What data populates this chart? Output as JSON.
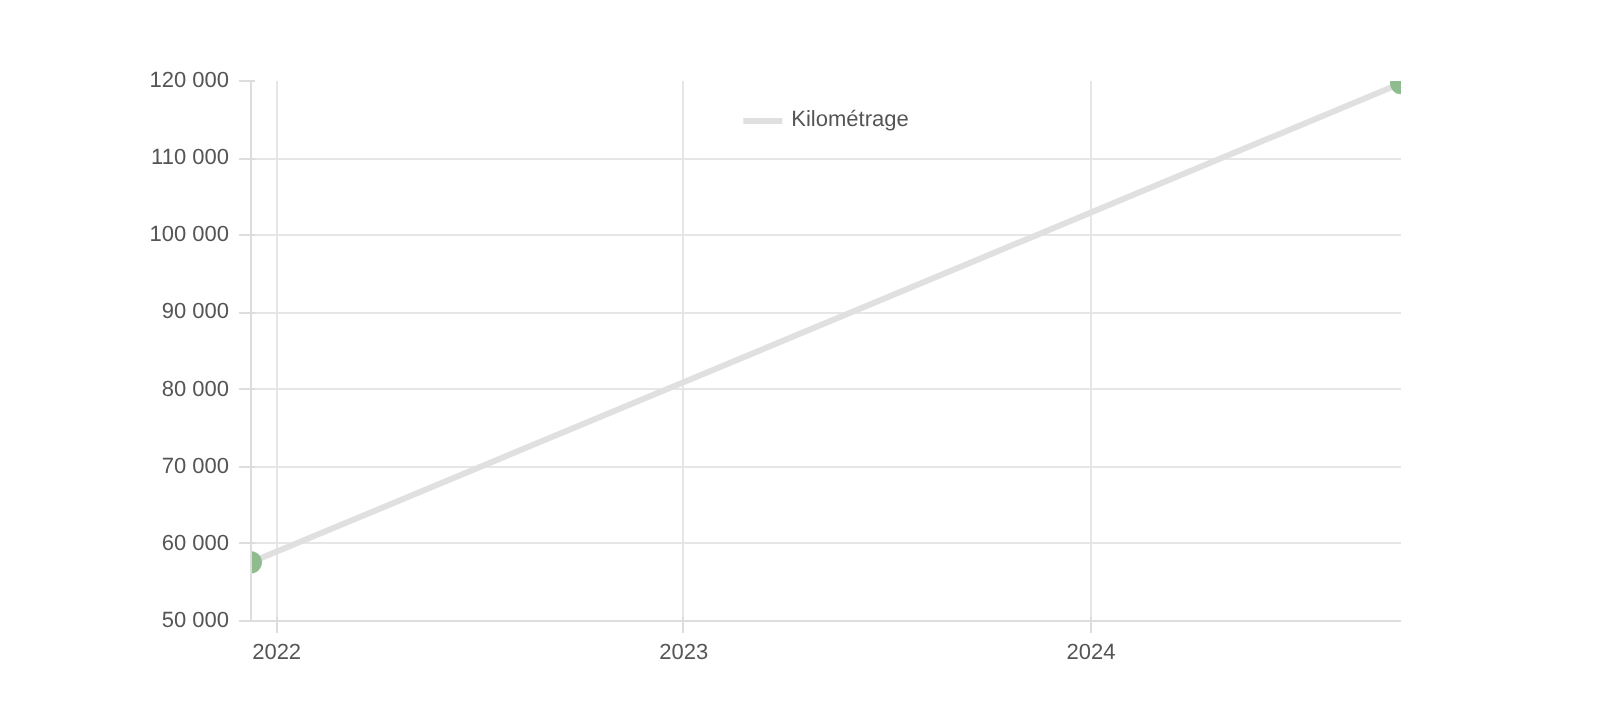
{
  "chart_data": {
    "type": "line",
    "x": [
      "2021-12-09",
      "2024-10-05"
    ],
    "series": [
      {
        "name": "Kilométrage",
        "color": "#e0e0e0",
        "values": [
          57600,
          119700
        ]
      },
      {
        "type": "scatter",
        "color": "#8fbc8f",
        "marker": "circle",
        "values": [
          57600,
          119700
        ]
      }
    ],
    "xlim": [
      "2021-12-09",
      "2024-10-05"
    ],
    "xticks": [
      {
        "value": "2022-01-01",
        "label": "2022"
      },
      {
        "value": "2023-01-01",
        "label": "2023"
      },
      {
        "value": "2024-01-01",
        "label": "2024"
      }
    ],
    "ylim": [
      50000,
      120000
    ],
    "yticks": [
      {
        "value": 50000,
        "label": "50 000"
      },
      {
        "value": 60000,
        "label": "60 000"
      },
      {
        "value": 70000,
        "label": "70 000"
      },
      {
        "value": 80000,
        "label": "80 000"
      },
      {
        "value": 90000,
        "label": "90 000"
      },
      {
        "value": 100000,
        "label": "100 000"
      },
      {
        "value": 110000,
        "label": "110 000"
      },
      {
        "value": 120000,
        "label": "120 000"
      }
    ],
    "grid": true,
    "legend": "top",
    "line_style": "solid"
  }
}
